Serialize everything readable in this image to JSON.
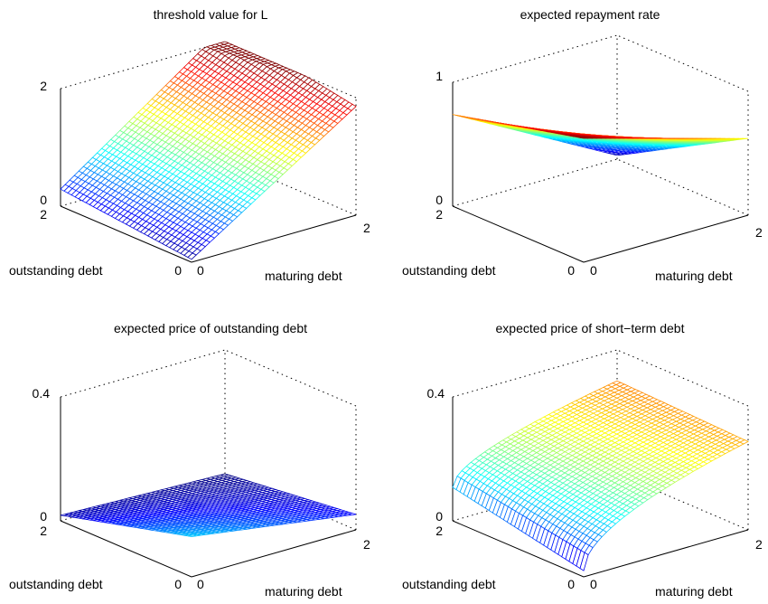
{
  "chart_data": [
    {
      "type": "surface",
      "title": "threshold value for L",
      "xlabel": "maturing debt",
      "ylabel": "outstanding debt",
      "xlim": [
        0,
        2
      ],
      "ylim": [
        0,
        2
      ],
      "zlim": [
        0,
        2
      ],
      "xticks": [
        "0",
        "2"
      ],
      "yticks": [
        "0",
        "2"
      ],
      "zticks": [
        "0",
        "2"
      ],
      "corner_values": {
        "x0_y0": 0.05,
        "x2_y0": 1.85,
        "x0_y2": 0.3,
        "x2_y2": 2.25
      },
      "colormap": "jet",
      "grid": true
    },
    {
      "type": "surface",
      "title": "expected repayment rate",
      "xlabel": "maturing debt",
      "ylabel": "outstanding debt",
      "xlim": [
        0,
        2
      ],
      "ylim": [
        0,
        2
      ],
      "zlim": [
        0,
        1
      ],
      "xticks": [
        "0",
        "2"
      ],
      "yticks": [
        "0",
        "2"
      ],
      "zticks": [
        "0",
        "1"
      ],
      "corner_values": {
        "x0_y0": 1.0,
        "x2_y0": 0.62,
        "x0_y2": 0.74,
        "x2_y2": 0.03
      },
      "colormap": "jet",
      "grid": true
    },
    {
      "type": "surface",
      "title": "expected price of outstanding debt",
      "xlabel": "maturing debt",
      "ylabel": "outstanding debt",
      "xlim": [
        0,
        2
      ],
      "ylim": [
        0,
        2
      ],
      "zlim": [
        0,
        0.4
      ],
      "xticks": [
        "0",
        "2"
      ],
      "yticks": [
        "0",
        "2"
      ],
      "zticks": [
        "0",
        "0.4"
      ],
      "corner_values": {
        "x0_y0": 0.13,
        "x2_y0": 0.1,
        "x0_y2": 0.03,
        "x2_y2": 0.0
      },
      "colormap": "jet",
      "grid": true
    },
    {
      "type": "surface",
      "title": "expected price of short−term debt",
      "xlabel": "maturing debt",
      "ylabel": "outstanding debt",
      "xlim": [
        0,
        2
      ],
      "ylim": [
        0,
        2
      ],
      "zlim": [
        0,
        0.4
      ],
      "xticks": [
        "0",
        "2"
      ],
      "yticks": [
        "0",
        "2"
      ],
      "zticks": [
        "0",
        "0.4"
      ],
      "corner_values": {
        "x0_y0": 0.02,
        "x2_y0": 0.3,
        "x0_y2": 0.12,
        "x2_y2": 0.3
      },
      "colormap": "jet",
      "grid": true
    }
  ]
}
